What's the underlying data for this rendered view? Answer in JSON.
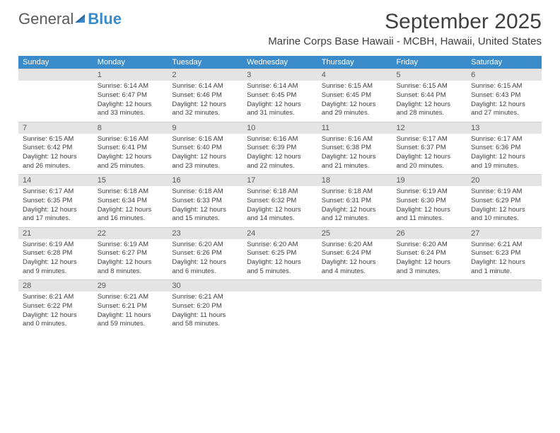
{
  "logo": {
    "text1": "General",
    "text2": "Blue"
  },
  "title": "September 2025",
  "subtitle": "Marine Corps Base Hawaii - MCBH, Hawaii, United States",
  "colors": {
    "header_bg": "#3a8bc9",
    "header_text": "#ffffff",
    "daynum_bg": "#e4e4e4",
    "text": "#404040",
    "logo_gray": "#5a5a5a",
    "logo_blue": "#3a8bc9"
  },
  "days_of_week": [
    "Sunday",
    "Monday",
    "Tuesday",
    "Wednesday",
    "Thursday",
    "Friday",
    "Saturday"
  ],
  "weeks": [
    {
      "nums": [
        "",
        "1",
        "2",
        "3",
        "4",
        "5",
        "6"
      ],
      "cells": [
        null,
        {
          "sr": "6:14 AM",
          "ss": "6:47 PM",
          "dl": "12 hours and 33 minutes."
        },
        {
          "sr": "6:14 AM",
          "ss": "6:46 PM",
          "dl": "12 hours and 32 minutes."
        },
        {
          "sr": "6:14 AM",
          "ss": "6:45 PM",
          "dl": "12 hours and 31 minutes."
        },
        {
          "sr": "6:15 AM",
          "ss": "6:45 PM",
          "dl": "12 hours and 29 minutes."
        },
        {
          "sr": "6:15 AM",
          "ss": "6:44 PM",
          "dl": "12 hours and 28 minutes."
        },
        {
          "sr": "6:15 AM",
          "ss": "6:43 PM",
          "dl": "12 hours and 27 minutes."
        }
      ]
    },
    {
      "nums": [
        "7",
        "8",
        "9",
        "10",
        "11",
        "12",
        "13"
      ],
      "cells": [
        {
          "sr": "6:15 AM",
          "ss": "6:42 PM",
          "dl": "12 hours and 26 minutes."
        },
        {
          "sr": "6:16 AM",
          "ss": "6:41 PM",
          "dl": "12 hours and 25 minutes."
        },
        {
          "sr": "6:16 AM",
          "ss": "6:40 PM",
          "dl": "12 hours and 23 minutes."
        },
        {
          "sr": "6:16 AM",
          "ss": "6:39 PM",
          "dl": "12 hours and 22 minutes."
        },
        {
          "sr": "6:16 AM",
          "ss": "6:38 PM",
          "dl": "12 hours and 21 minutes."
        },
        {
          "sr": "6:17 AM",
          "ss": "6:37 PM",
          "dl": "12 hours and 20 minutes."
        },
        {
          "sr": "6:17 AM",
          "ss": "6:36 PM",
          "dl": "12 hours and 19 minutes."
        }
      ]
    },
    {
      "nums": [
        "14",
        "15",
        "16",
        "17",
        "18",
        "19",
        "20"
      ],
      "cells": [
        {
          "sr": "6:17 AM",
          "ss": "6:35 PM",
          "dl": "12 hours and 17 minutes."
        },
        {
          "sr": "6:18 AM",
          "ss": "6:34 PM",
          "dl": "12 hours and 16 minutes."
        },
        {
          "sr": "6:18 AM",
          "ss": "6:33 PM",
          "dl": "12 hours and 15 minutes."
        },
        {
          "sr": "6:18 AM",
          "ss": "6:32 PM",
          "dl": "12 hours and 14 minutes."
        },
        {
          "sr": "6:18 AM",
          "ss": "6:31 PM",
          "dl": "12 hours and 12 minutes."
        },
        {
          "sr": "6:19 AM",
          "ss": "6:30 PM",
          "dl": "12 hours and 11 minutes."
        },
        {
          "sr": "6:19 AM",
          "ss": "6:29 PM",
          "dl": "12 hours and 10 minutes."
        }
      ]
    },
    {
      "nums": [
        "21",
        "22",
        "23",
        "24",
        "25",
        "26",
        "27"
      ],
      "cells": [
        {
          "sr": "6:19 AM",
          "ss": "6:28 PM",
          "dl": "12 hours and 9 minutes."
        },
        {
          "sr": "6:19 AM",
          "ss": "6:27 PM",
          "dl": "12 hours and 8 minutes."
        },
        {
          "sr": "6:20 AM",
          "ss": "6:26 PM",
          "dl": "12 hours and 6 minutes."
        },
        {
          "sr": "6:20 AM",
          "ss": "6:25 PM",
          "dl": "12 hours and 5 minutes."
        },
        {
          "sr": "6:20 AM",
          "ss": "6:24 PM",
          "dl": "12 hours and 4 minutes."
        },
        {
          "sr": "6:20 AM",
          "ss": "6:24 PM",
          "dl": "12 hours and 3 minutes."
        },
        {
          "sr": "6:21 AM",
          "ss": "6:23 PM",
          "dl": "12 hours and 1 minute."
        }
      ]
    },
    {
      "nums": [
        "28",
        "29",
        "30",
        "",
        "",
        "",
        ""
      ],
      "cells": [
        {
          "sr": "6:21 AM",
          "ss": "6:22 PM",
          "dl": "12 hours and 0 minutes."
        },
        {
          "sr": "6:21 AM",
          "ss": "6:21 PM",
          "dl": "11 hours and 59 minutes."
        },
        {
          "sr": "6:21 AM",
          "ss": "6:20 PM",
          "dl": "11 hours and 58 minutes."
        },
        null,
        null,
        null,
        null
      ]
    }
  ],
  "labels": {
    "sunrise": "Sunrise:",
    "sunset": "Sunset:",
    "daylight": "Daylight:"
  }
}
